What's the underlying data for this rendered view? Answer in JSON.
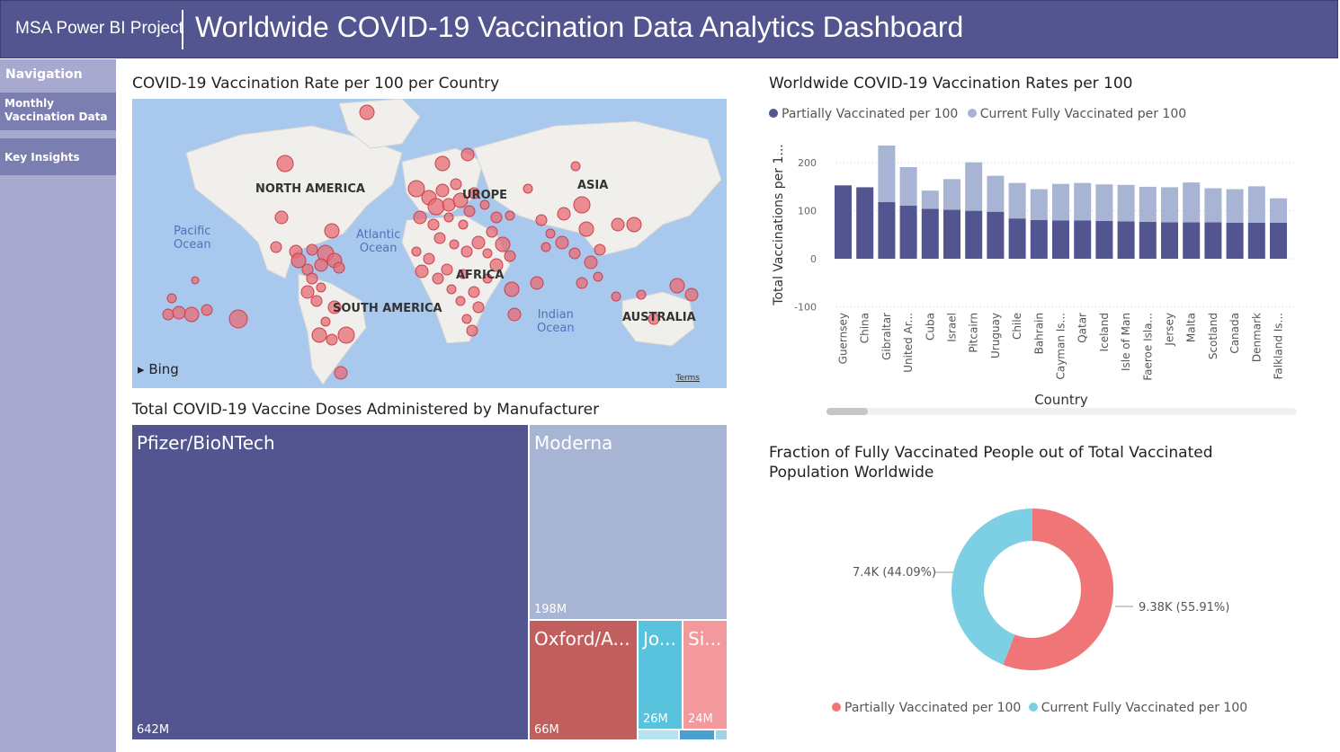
{
  "header": {
    "project": "MSA Power BI Project",
    "title": "Worldwide COVID-19 Vaccination Data Analytics Dashboard"
  },
  "sidebar": {
    "heading": "Navigation",
    "items": [
      {
        "label_line1": "Monthly",
        "label_line2": "Vaccination Data"
      },
      {
        "label": "Key Insights"
      }
    ]
  },
  "map": {
    "title": "COVID-19 Vaccination Rate per 100 per Country",
    "continents": [
      "NORTH AMERICA",
      "UROPE",
      "ASIA",
      "AFRICA",
      "SOUTH AMERICA",
      "AUSTRALIA"
    ],
    "oceans": [
      {
        "line1": "Pacific",
        "line2": "Ocean"
      },
      {
        "line1": "Atlantic",
        "line2": "Ocean"
      },
      {
        "line1": "Indian",
        "line2": "Ocean"
      }
    ],
    "provider": "Bing",
    "terms": "Terms",
    "colors": {
      "water": "#a9c8ee",
      "land": "#f0efec",
      "bubble": "#e86c74"
    }
  },
  "treemap": {
    "title": "Total COVID-19 Vaccine Doses Administered by Manufacturer",
    "items": [
      {
        "name": "Pfizer/BioNTech",
        "value": "642M",
        "color": "#525590"
      },
      {
        "name": "Moderna",
        "value": "198M",
        "color": "#a7b4d3"
      },
      {
        "name": "Oxford/A...",
        "value": "66M",
        "color": "#c15e5e"
      },
      {
        "name": "Jo...",
        "value": "26M",
        "color": "#59c2dc"
      },
      {
        "name": "Si...",
        "value": "24M",
        "color": "#f3989c"
      }
    ]
  },
  "chart_data": [
    {
      "type": "bar",
      "stacked": true,
      "title": "Worldwide COVID-19 Vaccination Rates per 100",
      "xlabel": "Country",
      "ylabel": "Total Vaccinations per 1...",
      "ylim": [
        -100,
        250
      ],
      "yticks": [
        "200",
        "100",
        "0",
        "-100"
      ],
      "legend_position": "top-left",
      "categories": [
        "Guernsey",
        "China",
        "Gibraltar",
        "United Ar...",
        "Cuba",
        "Israel",
        "Pitcairn",
        "Uruguay",
        "Chile",
        "Bahrain",
        "Cayman Is...",
        "Qatar",
        "Iceland",
        "Isle of Man",
        "Faeroe Isla...",
        "Jersey",
        "Malta",
        "Scotland",
        "Canada",
        "Denmark",
        "Falkland Is..."
      ],
      "series": [
        {
          "name": "Partially Vaccinated per 100",
          "color": "#525590",
          "values": [
            153,
            149,
            118,
            111,
            104,
            102,
            100,
            98,
            84,
            81,
            80,
            80,
            79,
            78,
            77,
            76,
            76,
            76,
            75,
            75,
            75
          ]
        },
        {
          "name": "Current Fully Vaccinated per 100",
          "color": "#a7b4d3",
          "values": [
            0,
            0,
            118,
            80,
            38,
            64,
            101,
            75,
            74,
            64,
            76,
            78,
            76,
            76,
            73,
            73,
            83,
            71,
            70,
            76,
            51
          ]
        }
      ]
    },
    {
      "type": "pie",
      "donut": true,
      "title": "Fraction of Fully Vaccinated People out of Total Vaccinated Population Worldwide",
      "legend_position": "bottom",
      "series": [
        {
          "name": "Partially Vaccinated per 100",
          "value": 9380,
          "label": "9.38K (55.91%)",
          "color": "#f07577"
        },
        {
          "name": "Current Fully Vaccinated per 100",
          "value": 7400,
          "label": "7.4K (44.09%)",
          "color": "#7dd0e4"
        }
      ]
    }
  ]
}
